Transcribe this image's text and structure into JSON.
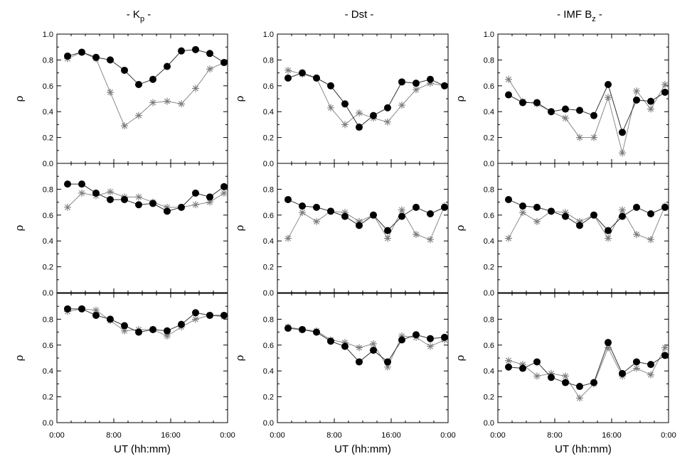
{
  "chart_data": {
    "type": "line",
    "column_titles": [
      "- K",
      "- Dst -",
      "- IMF B"
    ],
    "column_title_subscripts": [
      "p",
      "",
      "z"
    ],
    "column_title_suffixes": [
      " -",
      "",
      " -"
    ],
    "ylabel": "ρ",
    "xlabel": "UT (hh:mm)",
    "xlim": [
      0,
      24
    ],
    "ylim": [
      0.0,
      1.0
    ],
    "x_tick_labels": [
      "0:00",
      "8:00",
      "16:00",
      "0:00"
    ],
    "y_tick_labels": [
      "0.0",
      "0.2",
      "0.4",
      "0.6",
      "0.8",
      "1.0"
    ],
    "x": [
      1.5,
      3.5,
      5.5,
      7.5,
      9.5,
      11.5,
      13.5,
      15.5,
      17.5,
      19.5,
      21.5,
      23.5
    ],
    "panels": [
      [
        {
          "dots": [
            0.83,
            0.86,
            0.82,
            0.8,
            0.72,
            0.61,
            0.65,
            0.75,
            0.87,
            0.88,
            0.85,
            0.78
          ],
          "stars": [
            0.81,
            0.86,
            0.81,
            0.55,
            0.29,
            0.37,
            0.47,
            0.48,
            0.46,
            0.58,
            0.73,
            0.78
          ]
        },
        {
          "dots": [
            0.84,
            0.84,
            0.77,
            0.72,
            0.72,
            0.68,
            0.69,
            0.63,
            0.66,
            0.77,
            0.74,
            0.82
          ],
          "stars": [
            0.66,
            0.77,
            0.75,
            0.78,
            0.74,
            0.74,
            0.7,
            0.66,
            0.66,
            0.68,
            0.7,
            0.77
          ]
        },
        {
          "dots": [
            0.88,
            0.88,
            0.83,
            0.8,
            0.75,
            0.7,
            0.72,
            0.71,
            0.76,
            0.85,
            0.83,
            0.83
          ],
          "stars": [
            0.86,
            0.88,
            0.87,
            0.79,
            0.71,
            0.72,
            0.72,
            0.67,
            0.74,
            0.8,
            0.83,
            0.82
          ]
        }
      ],
      [
        {
          "dots": [
            0.66,
            0.7,
            0.66,
            0.6,
            0.46,
            0.28,
            0.37,
            0.43,
            0.63,
            0.62,
            0.65,
            0.6
          ],
          "stars": [
            0.72,
            0.69,
            0.66,
            0.43,
            0.3,
            0.39,
            0.35,
            0.32,
            0.45,
            0.57,
            0.62,
            0.6
          ]
        },
        {
          "dots": [
            0.72,
            0.67,
            0.66,
            0.63,
            0.59,
            0.52,
            0.6,
            0.48,
            0.59,
            0.66,
            0.61,
            0.66
          ],
          "stars": [
            0.42,
            0.62,
            0.55,
            0.63,
            0.62,
            0.55,
            0.6,
            0.42,
            0.64,
            0.45,
            0.41,
            0.67
          ]
        },
        {
          "dots": [
            0.73,
            0.72,
            0.7,
            0.63,
            0.59,
            0.47,
            0.56,
            0.47,
            0.64,
            0.68,
            0.65,
            0.66
          ],
          "stars": [
            0.74,
            0.72,
            0.71,
            0.64,
            0.62,
            0.58,
            0.61,
            0.43,
            0.67,
            0.66,
            0.59,
            0.64
          ]
        }
      ],
      [
        {
          "dots": [
            0.53,
            0.47,
            0.47,
            0.4,
            0.42,
            0.41,
            0.37,
            0.61,
            0.24,
            0.49,
            0.48,
            0.55
          ],
          "stars": [
            0.65,
            0.48,
            0.46,
            0.4,
            0.35,
            0.2,
            0.2,
            0.51,
            0.08,
            0.56,
            0.42,
            0.61
          ]
        },
        {
          "dots": [
            0.72,
            0.67,
            0.66,
            0.63,
            0.59,
            0.52,
            0.6,
            0.48,
            0.59,
            0.66,
            0.61,
            0.66
          ],
          "stars": [
            0.42,
            0.62,
            0.55,
            0.63,
            0.62,
            0.55,
            0.6,
            0.42,
            0.64,
            0.45,
            0.41,
            0.67
          ]
        },
        {
          "dots": [
            0.43,
            0.42,
            0.47,
            0.35,
            0.31,
            0.28,
            0.31,
            0.62,
            0.38,
            0.47,
            0.45,
            0.52
          ],
          "stars": [
            0.48,
            0.45,
            0.36,
            0.38,
            0.36,
            0.19,
            0.3,
            0.58,
            0.36,
            0.42,
            0.37,
            0.58
          ]
        }
      ]
    ]
  }
}
